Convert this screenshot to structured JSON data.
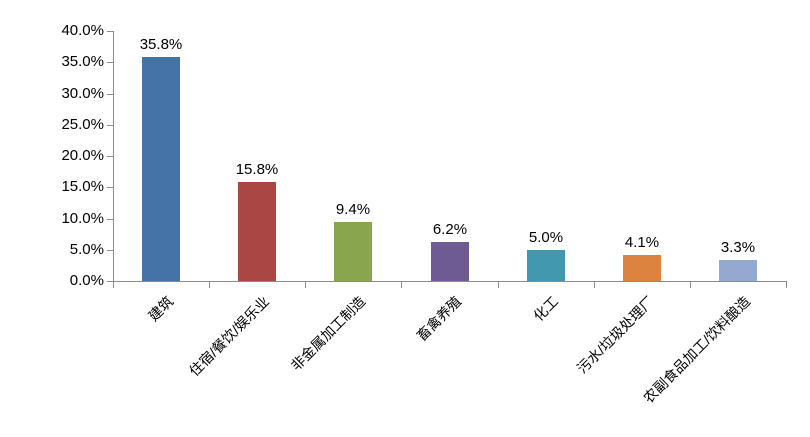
{
  "chart_data": {
    "type": "bar",
    "title": "",
    "xlabel": "",
    "ylabel": "",
    "grid": false,
    "legend": "none",
    "categories": [
      "建筑",
      "住宿/餐饮/娱乐业",
      "非金属加工制造",
      "畜禽养殖",
      "化工",
      "污水/垃圾处理厂",
      "农副食品加工/饮料酿造"
    ],
    "values": [
      35.8,
      15.8,
      9.4,
      6.2,
      5.0,
      4.1,
      3.3
    ],
    "data_labels": [
      "35.8%",
      "15.8%",
      "9.4%",
      "6.2%",
      "5.0%",
      "4.1%",
      "3.3%"
    ],
    "bar_colors": [
      "#4572A7",
      "#AA4643",
      "#89A54E",
      "#6F5B94",
      "#4198AF",
      "#DB843D",
      "#93A9CF"
    ],
    "y_axis": {
      "min": 0,
      "max": 40,
      "tick_step": 5,
      "tick_labels": [
        "0.0%",
        "5.0%",
        "10.0%",
        "15.0%",
        "20.0%",
        "25.0%",
        "30.0%",
        "35.0%",
        "40.0%"
      ]
    },
    "x_label_rotation_deg": 45,
    "axis_color": "#8C8C8C",
    "label_color": "#000000",
    "background_color": "#FFFFFF"
  }
}
